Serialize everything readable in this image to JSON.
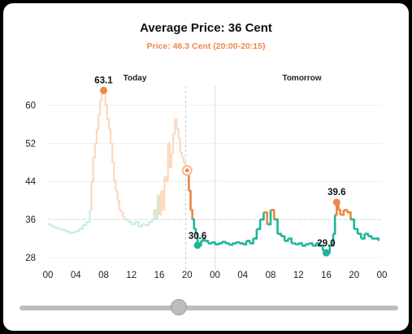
{
  "header": {
    "title": "Average Price: 36 Cent",
    "subtitle": "Price: 46.3 Cent (20:00-20:15)"
  },
  "chart_data": {
    "type": "line",
    "sections": [
      "Today",
      "Tomorrow"
    ],
    "y_ticks": [
      "60",
      "52",
      "44",
      "36",
      "28"
    ],
    "x_ticks": [
      "00",
      "04",
      "08",
      "12",
      "16",
      "20",
      "00",
      "04",
      "08",
      "12",
      "16",
      "20",
      "00"
    ],
    "ylim": [
      28,
      64
    ],
    "average": 36,
    "annotations": [
      {
        "label": "63.1",
        "x": 8,
        "y": 63.1,
        "kind": "max"
      },
      {
        "label": "30.6",
        "x": 21.5,
        "y": 30.6,
        "kind": "min"
      },
      {
        "label": "39.6",
        "x": 41.5,
        "y": 39.6,
        "kind": "max"
      },
      {
        "label": "29.0",
        "x": 40,
        "y": 29.0,
        "kind": "min"
      }
    ],
    "current": {
      "x": 20,
      "y": 46.3
    },
    "series": [
      {
        "values": [
          [
            0,
            35
          ],
          [
            0.5,
            34.5
          ],
          [
            1,
            34.2
          ],
          [
            1.5,
            34
          ],
          [
            2,
            33.8
          ],
          [
            2.5,
            33.5
          ],
          [
            3,
            33.2
          ],
          [
            3.5,
            33.3
          ],
          [
            4,
            33.6
          ],
          [
            4.5,
            34.1
          ],
          [
            5,
            34.8
          ],
          [
            5.5,
            35.5
          ],
          [
            6,
            38
          ],
          [
            6.25,
            44
          ],
          [
            6.5,
            49
          ],
          [
            6.75,
            52
          ],
          [
            7,
            55
          ],
          [
            7.25,
            58
          ],
          [
            7.5,
            61
          ],
          [
            7.75,
            62.5
          ],
          [
            8,
            63.1
          ],
          [
            8.25,
            60
          ],
          [
            8.5,
            57
          ],
          [
            8.75,
            55
          ],
          [
            9,
            52
          ],
          [
            9.25,
            48
          ],
          [
            9.5,
            44
          ],
          [
            9.75,
            42
          ],
          [
            10,
            40
          ],
          [
            10.25,
            38
          ],
          [
            10.5,
            37.5
          ],
          [
            10.75,
            36.5
          ],
          [
            11,
            36
          ],
          [
            11.5,
            35.5
          ],
          [
            12,
            35
          ],
          [
            12.5,
            35.5
          ],
          [
            13,
            34.5
          ],
          [
            13.5,
            35
          ],
          [
            14,
            34.8
          ],
          [
            14.5,
            35.5
          ],
          [
            15,
            36
          ],
          [
            15.25,
            38
          ],
          [
            15.5,
            36
          ],
          [
            15.75,
            41
          ],
          [
            16,
            37
          ],
          [
            16.25,
            42
          ],
          [
            16.5,
            38
          ],
          [
            16.75,
            45
          ],
          [
            17,
            44
          ],
          [
            17.25,
            52
          ],
          [
            17.5,
            47
          ],
          [
            17.75,
            50
          ],
          [
            18,
            54
          ],
          [
            18.25,
            57
          ],
          [
            18.5,
            55
          ],
          [
            18.75,
            53
          ],
          [
            19,
            50
          ],
          [
            19.25,
            49
          ],
          [
            19.5,
            48
          ],
          [
            19.75,
            47
          ],
          [
            20,
            46.3
          ],
          [
            20.25,
            42
          ],
          [
            20.5,
            38
          ],
          [
            20.75,
            36
          ],
          [
            21,
            34
          ],
          [
            21.25,
            33
          ],
          [
            21.5,
            31
          ],
          [
            21.75,
            30.6
          ],
          [
            22,
            31.5
          ],
          [
            22.25,
            32
          ],
          [
            22.5,
            31.5
          ],
          [
            23,
            31
          ],
          [
            23.5,
            31.2
          ],
          [
            24,
            30.8
          ],
          [
            24.5,
            31
          ],
          [
            25,
            31.3
          ],
          [
            25.5,
            31
          ],
          [
            26,
            30.7
          ],
          [
            26.5,
            31
          ],
          [
            27,
            31.2
          ],
          [
            27.5,
            31
          ],
          [
            28,
            30.8
          ],
          [
            28.5,
            31.5
          ],
          [
            29,
            31
          ],
          [
            29.5,
            32
          ],
          [
            30,
            34
          ],
          [
            30.5,
            36
          ],
          [
            31,
            37.5
          ],
          [
            31.5,
            35
          ],
          [
            32,
            38
          ],
          [
            32.5,
            36
          ],
          [
            33,
            33
          ],
          [
            33.5,
            32.5
          ],
          [
            34,
            31.5
          ],
          [
            34.5,
            32
          ],
          [
            35,
            31
          ],
          [
            35.5,
            30.8
          ],
          [
            36,
            31
          ],
          [
            36.5,
            30.5
          ],
          [
            37,
            30.8
          ],
          [
            37.5,
            31
          ],
          [
            38,
            30.5
          ],
          [
            38.5,
            31
          ],
          [
            39,
            30.5
          ],
          [
            39.5,
            29.5
          ],
          [
            40,
            29
          ],
          [
            40.5,
            30.5
          ],
          [
            41,
            33
          ],
          [
            41.25,
            37
          ],
          [
            41.5,
            39.6
          ],
          [
            41.75,
            38
          ],
          [
            42,
            37
          ],
          [
            42.5,
            38
          ],
          [
            43,
            37.5
          ],
          [
            43.5,
            36
          ],
          [
            44,
            34
          ],
          [
            44.5,
            33
          ],
          [
            45,
            32
          ],
          [
            45.5,
            33
          ],
          [
            46,
            32.5
          ],
          [
            46.5,
            32
          ],
          [
            47,
            32
          ],
          [
            47.5,
            31.5
          ]
        ]
      }
    ]
  },
  "slider": {
    "value": 0.42
  }
}
